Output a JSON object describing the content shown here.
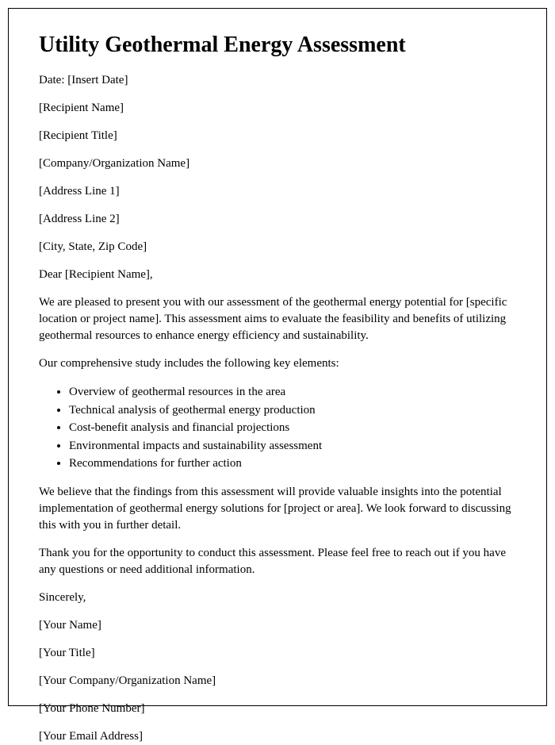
{
  "title": "Utility Geothermal Energy Assessment",
  "header": {
    "date": "Date: [Insert Date]",
    "recipientName": "[Recipient Name]",
    "recipientTitle": "[Recipient Title]",
    "companyName": "[Company/Organization Name]",
    "address1": "[Address Line 1]",
    "address2": "[Address Line 2]",
    "cityStateZip": "[City, State, Zip Code]"
  },
  "salutation": "Dear [Recipient Name],",
  "body": {
    "intro": "We are pleased to present you with our assessment of the geothermal energy potential for [specific location or project name]. This assessment aims to evaluate the feasibility and benefits of utilizing geothermal resources to enhance energy efficiency and sustainability.",
    "listIntro": "Our comprehensive study includes the following key elements:",
    "items": [
      "Overview of geothermal resources in the area",
      "Technical analysis of geothermal energy production",
      "Cost-benefit analysis and financial projections",
      "Environmental impacts and sustainability assessment",
      "Recommendations for further action"
    ],
    "para2": "We believe that the findings from this assessment will provide valuable insights into the potential implementation of geothermal energy solutions for [project or area]. We look forward to discussing this with you in further detail.",
    "para3": "Thank you for the opportunity to conduct this assessment. Please feel free to reach out if you have any questions or need additional information."
  },
  "closing": {
    "signoff": "Sincerely,",
    "yourName": "[Your Name]",
    "yourTitle": "[Your Title]",
    "yourCompany": "[Your Company/Organization Name]",
    "yourPhone": "[Your Phone Number]",
    "yourEmail": "[Your Email Address]"
  }
}
